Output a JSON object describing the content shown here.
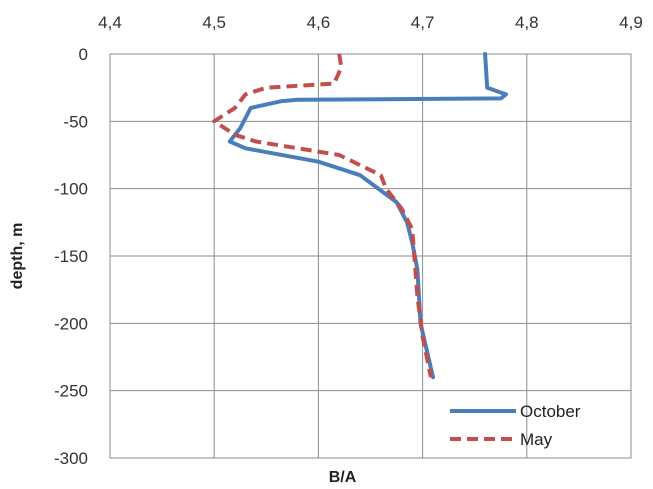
{
  "chart_data": {
    "type": "line",
    "title": "",
    "xlabel": "B/A",
    "ylabel": "depth, m",
    "xlim": [
      4.4,
      4.9
    ],
    "ylim": [
      -300,
      0
    ],
    "x_axis_position": "top",
    "x_ticks": [
      "4,4",
      "4,5",
      "4,6",
      "4,7",
      "4,8",
      "4,9"
    ],
    "y_ticks": [
      "0",
      "-50",
      "-100",
      "-150",
      "-200",
      "-250",
      "-300"
    ],
    "grid": true,
    "legend": "bottom-right",
    "series": [
      {
        "name": "October",
        "color": "#4a7ebb",
        "style": "solid",
        "points": [
          [
            4.76,
            0
          ],
          [
            4.762,
            -25
          ],
          [
            4.78,
            -30
          ],
          [
            4.775,
            -33
          ],
          [
            4.58,
            -34
          ],
          [
            4.565,
            -35
          ],
          [
            4.535,
            -40
          ],
          [
            4.525,
            -55
          ],
          [
            4.52,
            -60
          ],
          [
            4.515,
            -65
          ],
          [
            4.53,
            -70
          ],
          [
            4.6,
            -80
          ],
          [
            4.64,
            -90
          ],
          [
            4.675,
            -110
          ],
          [
            4.685,
            -125
          ],
          [
            4.69,
            -140
          ],
          [
            4.695,
            -160
          ],
          [
            4.698,
            -200
          ],
          [
            4.71,
            -240
          ]
        ]
      },
      {
        "name": "May",
        "color": "#c0504d",
        "style": "dashed",
        "points": [
          [
            4.62,
            0
          ],
          [
            4.622,
            -10
          ],
          [
            4.615,
            -22
          ],
          [
            4.55,
            -25
          ],
          [
            4.53,
            -30
          ],
          [
            4.52,
            -40
          ],
          [
            4.5,
            -50
          ],
          [
            4.52,
            -60
          ],
          [
            4.54,
            -65
          ],
          [
            4.62,
            -75
          ],
          [
            4.66,
            -90
          ],
          [
            4.665,
            -100
          ],
          [
            4.68,
            -115
          ],
          [
            4.69,
            -130
          ],
          [
            4.692,
            -150
          ],
          [
            4.695,
            -180
          ],
          [
            4.7,
            -210
          ],
          [
            4.708,
            -240
          ]
        ]
      }
    ]
  }
}
